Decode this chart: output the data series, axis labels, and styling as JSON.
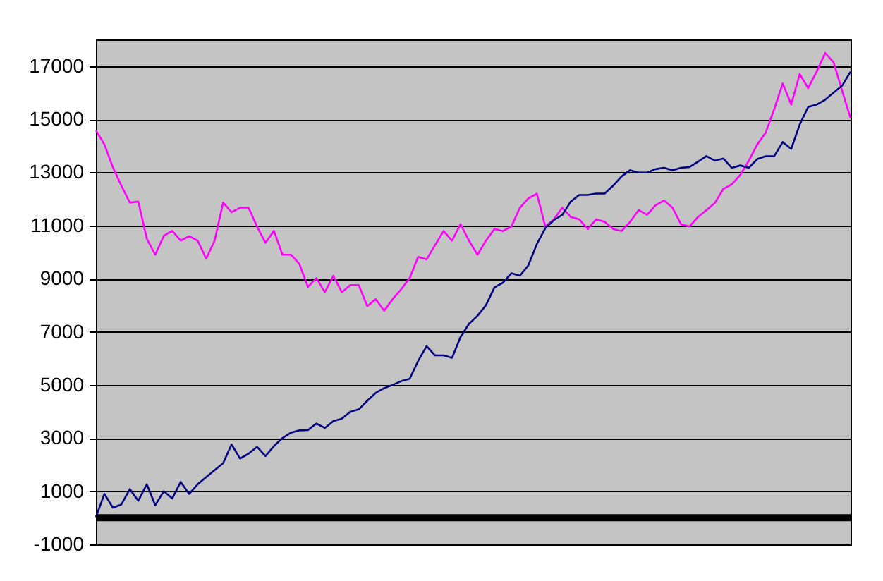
{
  "chart_data": {
    "type": "line",
    "categories": [
      null,
      null,
      null,
      null,
      null,
      null,
      null,
      null,
      null,
      null,
      null,
      null,
      null,
      null,
      null,
      null,
      null,
      null,
      null,
      null,
      null,
      null,
      null,
      null,
      null,
      null,
      null,
      null,
      null,
      null,
      null,
      null,
      null,
      null,
      null,
      null,
      null,
      null,
      null,
      null,
      null,
      null,
      null,
      null,
      null,
      null,
      null,
      null,
      null,
      null,
      null,
      null,
      null,
      null,
      null,
      null,
      null,
      null,
      null,
      null,
      null,
      null,
      null,
      null,
      null,
      null,
      null,
      null,
      null,
      null,
      null,
      null,
      null,
      null,
      null,
      null,
      null,
      null,
      null,
      null,
      null,
      null,
      null,
      null,
      null,
      null,
      null,
      null,
      null,
      null
    ],
    "series": [
      {
        "color": "#ff00ff",
        "values": [
          14580,
          14050,
          13190,
          12500,
          11860,
          11900,
          10500,
          9900,
          10610,
          10800,
          10430,
          10600,
          10430,
          9750,
          10430,
          11860,
          11500,
          11670,
          11670,
          10960,
          10350,
          10800,
          9900,
          9900,
          9550,
          8690,
          9020,
          8490,
          9110,
          8490,
          8760,
          8760,
          7960,
          8230,
          7790,
          8230,
          8600,
          9020,
          9820,
          9730,
          10260,
          10790,
          10430,
          11050,
          10430,
          9900,
          10430,
          10870,
          10790,
          10960,
          11670,
          12020,
          12200,
          10960,
          11230,
          11670,
          11320,
          11230,
          10870,
          11230,
          11140,
          10870,
          10790,
          11140,
          11580,
          11400,
          11760,
          11940,
          11670,
          11050,
          10960,
          11320,
          11580,
          11850,
          12380,
          12550,
          12910,
          13440,
          14050,
          14500,
          15380,
          16350,
          15550,
          16700,
          16170,
          16790,
          17490,
          17140,
          16080,
          15030
        ]
      },
      {
        "color": "#000080",
        "values": [
          20,
          900,
          380,
          500,
          1080,
          640,
          1260,
          470,
          1000,
          730,
          1350,
          900,
          1260,
          1530,
          1790,
          2050,
          2760,
          2230,
          2410,
          2670,
          2320,
          2700,
          3000,
          3200,
          3290,
          3300,
          3550,
          3380,
          3640,
          3730,
          3990,
          4080,
          4400,
          4700,
          4880,
          5000,
          5140,
          5230,
          5900,
          6460,
          6110,
          6110,
          6020,
          6800,
          7300,
          7600,
          8000,
          8670,
          8850,
          9200,
          9110,
          9500,
          10300,
          10900,
          11200,
          11400,
          11900,
          12150,
          12150,
          12200,
          12200,
          12500,
          12850,
          13080,
          12990,
          12990,
          13120,
          13170,
          13080,
          13170,
          13200,
          13400,
          13610,
          13440,
          13520,
          13170,
          13260,
          13170,
          13500,
          13610,
          13610,
          14140,
          13880,
          14800,
          15460,
          15550,
          15730,
          16000,
          16260,
          16790
        ]
      }
    ],
    "ylim": [
      -1000,
      18000
    ],
    "yticks": [
      -1000,
      1000,
      3000,
      5000,
      7000,
      9000,
      11000,
      13000,
      15000,
      17000
    ],
    "grid": "y",
    "tick_labels": "y",
    "line_style": "solid",
    "marker": "none",
    "ref_lines": [
      {
        "axis": "y",
        "value": 0,
        "color": "#000000"
      }
    ]
  }
}
